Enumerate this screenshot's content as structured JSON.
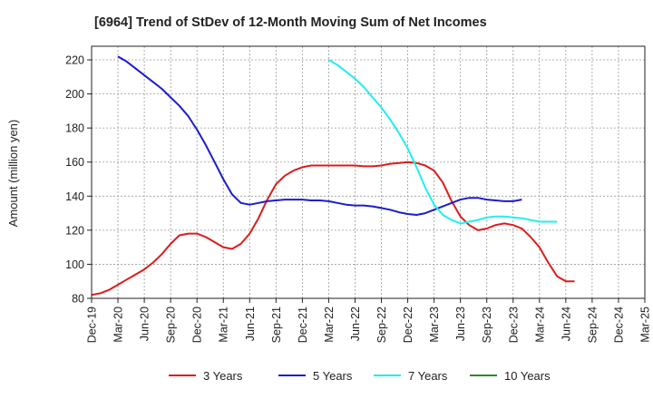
{
  "chart_data": {
    "type": "line",
    "title": "[6964]  Trend of StDev of 12-Month Moving Sum of Net Incomes",
    "ylabel": "Amount (million yen)",
    "xlabel": "",
    "ylim": [
      80,
      228
    ],
    "yticks": [
      80,
      100,
      120,
      140,
      160,
      180,
      200,
      220
    ],
    "x_tick_labels": [
      "Dec-19",
      "Mar-20",
      "Jun-20",
      "Sep-20",
      "Dec-20",
      "Mar-21",
      "Jun-21",
      "Sep-21",
      "Dec-21",
      "Mar-22",
      "Jun-22",
      "Sep-22",
      "Dec-22",
      "Mar-23",
      "Jun-23",
      "Sep-23",
      "Dec-23",
      "Mar-24",
      "Jun-24",
      "Sep-24",
      "Dec-24",
      "Mar-25"
    ],
    "x_start": "Dec-19",
    "grid": true,
    "legend_position": "bottom",
    "series": [
      {
        "name": "3 Years",
        "color": "#dd1c1c",
        "start_month": 0,
        "values": [
          82,
          83,
          85,
          88,
          91,
          94,
          97,
          101,
          106,
          112,
          117,
          118,
          118,
          116,
          113,
          110,
          109,
          112,
          118,
          127,
          138,
          147,
          152,
          155,
          157,
          158,
          158,
          158,
          158,
          158,
          158,
          157.5,
          157.5,
          158,
          159,
          159.5,
          160,
          159.5,
          158,
          155,
          148,
          137,
          128,
          123,
          120,
          121,
          123,
          124,
          123,
          121,
          116,
          110,
          101,
          93,
          90,
          90
        ]
      },
      {
        "name": "5 Years",
        "color": "#1c1ccc",
        "start_month": 3,
        "values": [
          222,
          219,
          215,
          211,
          207,
          203,
          198,
          193,
          187,
          179,
          170,
          160,
          150,
          141,
          136,
          135,
          136,
          137,
          137.5,
          138,
          138,
          138,
          137.5,
          137.5,
          137,
          136,
          135,
          134.5,
          134.5,
          134,
          133,
          132,
          130.5,
          129.5,
          129,
          130,
          132,
          134,
          136,
          138,
          139,
          139,
          138,
          137.5,
          137,
          137,
          138
        ]
      },
      {
        "name": "7 Years",
        "color": "#22eeee",
        "start_month": 27,
        "values": [
          220,
          217,
          213,
          209,
          204,
          198,
          192,
          185,
          177,
          168,
          157,
          145,
          135,
          129,
          126,
          124,
          125,
          126,
          127.5,
          128,
          128,
          127.5,
          127,
          126,
          125,
          125,
          125
        ]
      },
      {
        "name": "10 Years",
        "color": "#2a8a2a",
        "start_month": 0,
        "values": []
      }
    ]
  }
}
